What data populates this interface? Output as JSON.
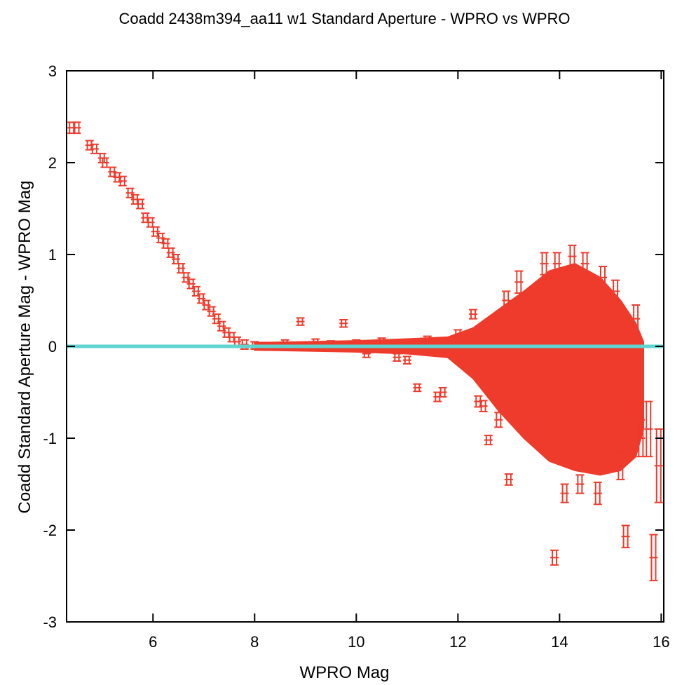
{
  "chart_data": {
    "type": "scatter",
    "title": "Coadd 2438m394_aa11 w1 Standard Aperture - WPRO vs WPRO",
    "xlabel": "WPRO Mag",
    "ylabel": "Coadd Standard Aperture Mag - WPRO Mag",
    "xlim": [
      4.3,
      16.05
    ],
    "ylim": [
      -3,
      3
    ],
    "xticks": [
      6,
      8,
      10,
      12,
      14,
      16
    ],
    "yticks": [
      -3,
      -2,
      -1,
      0,
      1,
      2,
      3
    ],
    "grid": false,
    "point_color": "#ee3b2c",
    "reference_line": {
      "y": 0,
      "color": "#5fd4d0"
    },
    "series": [
      {
        "points": [
          [
            4.4,
            2.38,
            0.06
          ],
          [
            4.5,
            2.38,
            0.06
          ],
          [
            4.75,
            2.19,
            0.05
          ],
          [
            4.85,
            2.15,
            0.05
          ],
          [
            5.0,
            2.05,
            0.05
          ],
          [
            5.05,
            2.0,
            0.05
          ],
          [
            5.2,
            1.9,
            0.05
          ],
          [
            5.3,
            1.84,
            0.05
          ],
          [
            5.4,
            1.8,
            0.05
          ],
          [
            5.55,
            1.67,
            0.05
          ],
          [
            5.65,
            1.6,
            0.05
          ],
          [
            5.75,
            1.55,
            0.05
          ],
          [
            5.85,
            1.4,
            0.05
          ],
          [
            5.95,
            1.35,
            0.05
          ],
          [
            6.05,
            1.25,
            0.05
          ],
          [
            6.15,
            1.18,
            0.05
          ],
          [
            6.25,
            1.12,
            0.05
          ],
          [
            6.35,
            1.02,
            0.05
          ],
          [
            6.45,
            0.95,
            0.05
          ],
          [
            6.55,
            0.85,
            0.05
          ],
          [
            6.65,
            0.75,
            0.05
          ],
          [
            6.75,
            0.68,
            0.05
          ],
          [
            6.85,
            0.6,
            0.05
          ],
          [
            6.95,
            0.52,
            0.05
          ],
          [
            7.05,
            0.45,
            0.05
          ],
          [
            7.15,
            0.38,
            0.05
          ],
          [
            7.25,
            0.3,
            0.05
          ],
          [
            7.35,
            0.22,
            0.05
          ],
          [
            7.45,
            0.15,
            0.05
          ],
          [
            7.55,
            0.1,
            0.05
          ],
          [
            7.65,
            0.05,
            0.05
          ],
          [
            7.8,
            0.02,
            0.05
          ],
          [
            8.0,
            0.01,
            0.04
          ],
          [
            8.3,
            0.0,
            0.04
          ],
          [
            8.6,
            0.03,
            0.04
          ],
          [
            8.9,
            0.27,
            0.04
          ],
          [
            9.2,
            0.04,
            0.04
          ],
          [
            9.5,
            0.02,
            0.04
          ],
          [
            9.75,
            0.25,
            0.04
          ],
          [
            10.0,
            0.03,
            0.04
          ],
          [
            10.2,
            -0.08,
            0.04
          ],
          [
            10.5,
            0.05,
            0.04
          ],
          [
            10.8,
            -0.12,
            0.04
          ],
          [
            11.0,
            -0.15,
            0.04
          ],
          [
            11.2,
            -0.45,
            0.04
          ],
          [
            11.4,
            0.06,
            0.05
          ],
          [
            11.6,
            -0.55,
            0.05
          ],
          [
            11.7,
            -0.5,
            0.05
          ],
          [
            12.0,
            0.1,
            0.08
          ],
          [
            12.3,
            0.35,
            0.05
          ],
          [
            12.4,
            -0.6,
            0.06
          ],
          [
            12.5,
            -0.65,
            0.06
          ],
          [
            12.6,
            -1.02,
            0.05
          ],
          [
            12.8,
            -0.8,
            0.08
          ],
          [
            12.95,
            0.5,
            0.1
          ],
          [
            13.0,
            -1.45,
            0.06
          ],
          [
            13.2,
            0.7,
            0.12
          ],
          [
            13.5,
            -0.9,
            0.12
          ],
          [
            13.7,
            0.9,
            0.12
          ],
          [
            13.9,
            -2.3,
            0.08
          ],
          [
            13.95,
            0.9,
            0.12
          ],
          [
            14.1,
            -1.6,
            0.1
          ],
          [
            14.25,
            0.98,
            0.12
          ],
          [
            14.4,
            -1.5,
            0.1
          ],
          [
            14.5,
            0.9,
            0.12
          ],
          [
            14.75,
            -1.6,
            0.12
          ],
          [
            14.85,
            0.75,
            0.12
          ],
          [
            15.1,
            0.6,
            0.12
          ],
          [
            15.2,
            -1.3,
            0.15
          ],
          [
            15.3,
            -2.07,
            0.12
          ],
          [
            15.5,
            0.3,
            0.15
          ],
          [
            15.6,
            -1.0,
            0.2
          ],
          [
            15.75,
            -0.9,
            0.3
          ],
          [
            15.85,
            -2.3,
            0.25
          ],
          [
            15.95,
            -1.3,
            0.4
          ]
        ]
      }
    ],
    "dense_regions": [
      {
        "description_key": "band",
        "lower": [
          [
            8.0,
            -0.04
          ],
          [
            9.0,
            -0.05
          ],
          [
            10.0,
            -0.06
          ],
          [
            11.0,
            -0.08
          ],
          [
            11.8,
            -0.12
          ],
          [
            12.3,
            -0.35
          ],
          [
            12.8,
            -0.7
          ],
          [
            13.3,
            -1.0
          ],
          [
            13.8,
            -1.25
          ],
          [
            14.3,
            -1.35
          ],
          [
            14.8,
            -1.4
          ],
          [
            15.2,
            -1.35
          ],
          [
            15.5,
            -1.2
          ],
          [
            15.65,
            -0.9
          ]
        ],
        "upper": [
          [
            8.0,
            0.04
          ],
          [
            9.0,
            0.05
          ],
          [
            10.0,
            0.06
          ],
          [
            11.0,
            0.08
          ],
          [
            11.8,
            0.1
          ],
          [
            12.3,
            0.2
          ],
          [
            12.8,
            0.4
          ],
          [
            13.3,
            0.6
          ],
          [
            13.8,
            0.82
          ],
          [
            14.3,
            0.9
          ],
          [
            14.8,
            0.75
          ],
          [
            15.2,
            0.5
          ],
          [
            15.5,
            0.25
          ],
          [
            15.65,
            0.05
          ]
        ]
      }
    ]
  }
}
